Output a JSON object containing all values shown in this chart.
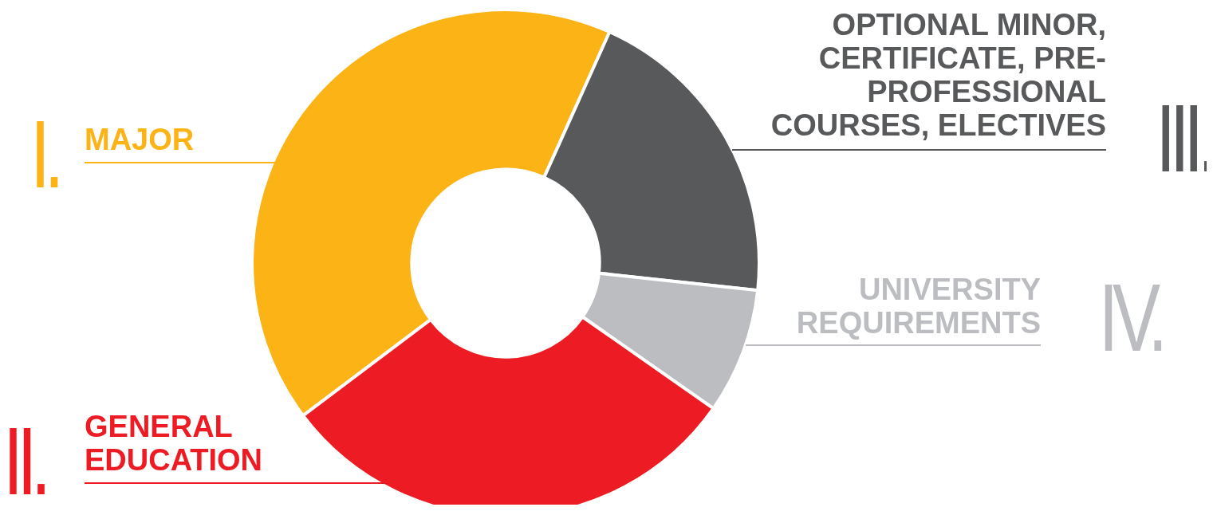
{
  "chart_data": {
    "type": "donut",
    "categories": [
      "MAJOR",
      "OPTIONAL MINOR, CERTIFICATE, PRE-PROFESSIONAL COURSES, ELECTIVES",
      "UNIVERSITY REQUIREMENTS",
      "GENERAL EDUCATION"
    ],
    "values": [
      42,
      20,
      8,
      30
    ],
    "colors": [
      "#fbb316",
      "#58595b",
      "#bcbdc0",
      "#ed1c24"
    ],
    "annotations": [
      "I.",
      "III.",
      "IV.",
      "II."
    ],
    "legend": false
  }
}
